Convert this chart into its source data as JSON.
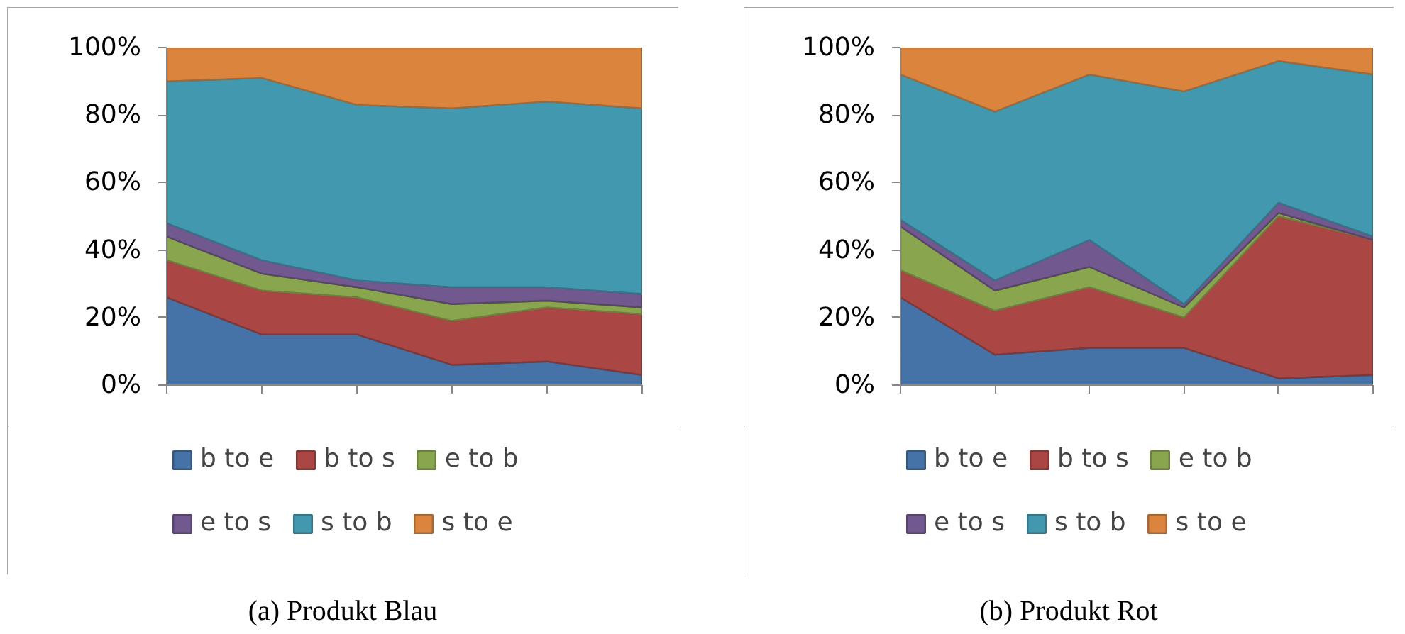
{
  "chart_data": [
    {
      "type": "area",
      "title": "(a) Produkt Blau",
      "categories": [
        null,
        null,
        null,
        null,
        null,
        null
      ],
      "stacked": true,
      "legend": "bottom",
      "tick_labels": "y",
      "series": [
        {
          "name": "b to e",
          "color": "#4572a7",
          "values": [
            26,
            15,
            15,
            6,
            7,
            3
          ]
        },
        {
          "name": "b to s",
          "color": "#aa4643",
          "values": [
            11,
            13,
            11,
            13,
            16,
            18
          ]
        },
        {
          "name": "e to b",
          "color": "#89a54e",
          "values": [
            7,
            5,
            3,
            5,
            2,
            2
          ]
        },
        {
          "name": "e to s",
          "color": "#71588f",
          "values": [
            4,
            4,
            2,
            5,
            4,
            4
          ]
        },
        {
          "name": "s to b",
          "color": "#4198af",
          "values": [
            42,
            54,
            52,
            53,
            55,
            55
          ]
        },
        {
          "name": "s to e",
          "color": "#db843d",
          "values": [
            10,
            9,
            17,
            18,
            16,
            18
          ]
        }
      ],
      "ylim": [
        0,
        100
      ],
      "yticks": [
        {
          "value": 0,
          "label": "0%"
        },
        {
          "value": 20,
          "label": "20%"
        },
        {
          "value": 40,
          "label": "40%"
        },
        {
          "value": 60,
          "label": "60%"
        },
        {
          "value": 80,
          "label": "80%"
        },
        {
          "value": 100,
          "label": "100%"
        }
      ]
    },
    {
      "type": "area",
      "title": "(b) Produkt Rot",
      "categories": [
        null,
        null,
        null,
        null,
        null,
        null
      ],
      "stacked": true,
      "legend": "bottom",
      "tick_labels": "y",
      "series": [
        {
          "name": "b to e",
          "color": "#4572a7",
          "values": [
            26,
            9,
            11,
            11,
            2,
            3
          ]
        },
        {
          "name": "b to s",
          "color": "#aa4643",
          "values": [
            8,
            13,
            18,
            9,
            48,
            40
          ]
        },
        {
          "name": "e to b",
          "color": "#89a54e",
          "values": [
            13,
            6,
            6,
            3,
            1,
            0
          ]
        },
        {
          "name": "e to s",
          "color": "#71588f",
          "values": [
            2,
            3,
            8,
            1,
            3,
            1
          ]
        },
        {
          "name": "s to b",
          "color": "#4198af",
          "values": [
            43,
            50,
            49,
            63,
            42,
            48
          ]
        },
        {
          "name": "s to e",
          "color": "#db843d",
          "values": [
            8,
            19,
            8,
            13,
            4,
            8
          ]
        }
      ],
      "ylim": [
        0,
        100
      ],
      "yticks": [
        {
          "value": 0,
          "label": "0%"
        },
        {
          "value": 20,
          "label": "20%"
        },
        {
          "value": 40,
          "label": "40%"
        },
        {
          "value": 60,
          "label": "60%"
        },
        {
          "value": 80,
          "label": "80%"
        },
        {
          "value": 100,
          "label": "100%"
        }
      ]
    }
  ]
}
